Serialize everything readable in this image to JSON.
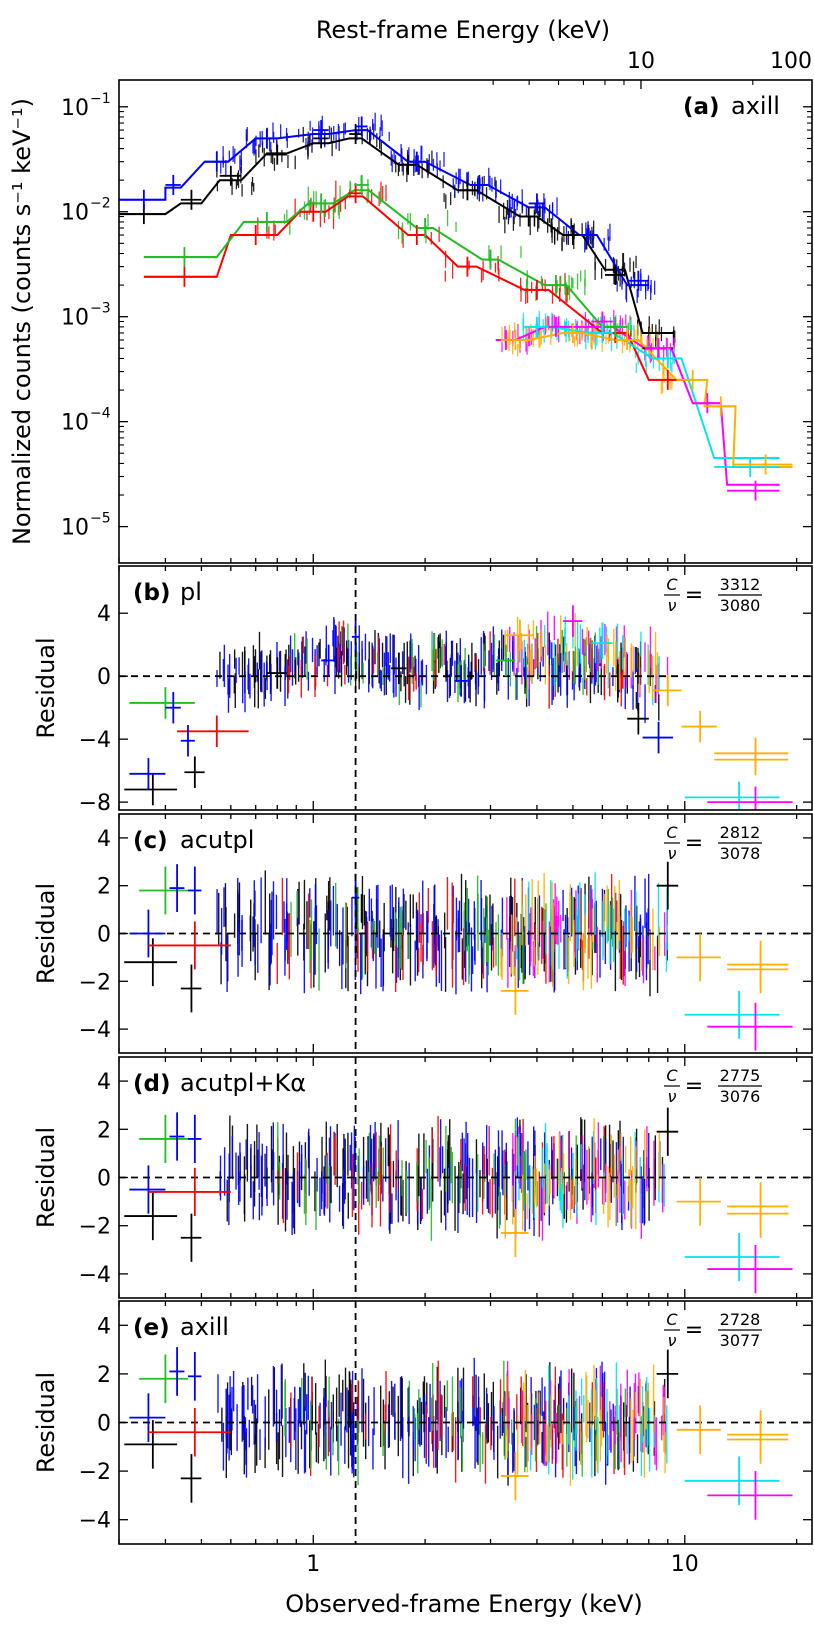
{
  "chart_data": {
    "type": "scatter",
    "description_units": "keV",
    "top_axis_label": "Rest-frame Energy (keV)",
    "top_axis_ticks": [
      "10",
      "100"
    ],
    "bottom_axis_label": "Observed-frame Energy (keV)",
    "bottom_axis_ticks": [
      "1",
      "10"
    ],
    "x_range": [
      0.3,
      22
    ],
    "series_colors": [
      "#000000",
      "#0000ff",
      "#ff0000",
      "#22bb22",
      "#ff00ff",
      "#00e5ee",
      "#ffb000"
    ],
    "reference_line_energy": 1.3,
    "panels": [
      {
        "id": "a",
        "tag": "(a)",
        "model": "axill",
        "ylabel": "Normalized counts (counts s⁻¹ keV⁻¹)",
        "yscale": "log",
        "ylim": [
          4.5e-06,
          0.18
        ],
        "yticks": [
          {
            "value": 0.1,
            "base": "10",
            "exp": "−1"
          },
          {
            "value": 0.01,
            "base": "10",
            "exp": "−2"
          },
          {
            "value": 0.001,
            "base": "10",
            "exp": "−3"
          },
          {
            "value": 0.0001,
            "base": "10",
            "exp": "−4"
          },
          {
            "value": 1e-05,
            "base": "10",
            "exp": "−5"
          }
        ]
      },
      {
        "id": "b",
        "tag": "(b)",
        "model": "pl",
        "ylabel": "Residual",
        "ylim": [
          -8.5,
          7
        ],
        "yticks": [
          4,
          0,
          -4,
          -8
        ],
        "stat_num": "3312",
        "stat_den": "3080"
      },
      {
        "id": "c",
        "tag": "(c)",
        "model": "acutpl",
        "ylabel": "Residual",
        "ylim": [
          -5,
          5
        ],
        "yticks": [
          4,
          2,
          0,
          -2,
          -4
        ],
        "stat_num": "2812",
        "stat_den": "3078"
      },
      {
        "id": "d",
        "tag": "(d)",
        "model": "acutpl+Kα",
        "ylabel": "Residual",
        "ylim": [
          -5,
          5
        ],
        "yticks": [
          4,
          2,
          0,
          -2,
          -4
        ],
        "stat_num": "2775",
        "stat_den": "3076"
      },
      {
        "id": "e",
        "tag": "(e)",
        "model": "axill",
        "ylabel": "Residual",
        "ylim": [
          -5,
          5
        ],
        "yticks": [
          4,
          2,
          0,
          -2,
          -4
        ],
        "stat_num": "2728",
        "stat_den": "3077"
      }
    ],
    "stat_symbol_c": "C",
    "stat_symbol_nu": "ν",
    "tag_color": "#d01c3c",
    "spectra_points": [
      {
        "series": 0,
        "e": 0.35,
        "ew": 0.05,
        "v": 0.0095,
        "model": 0.0095
      },
      {
        "series": 0,
        "e": 0.47,
        "ew": 0.03,
        "v": 0.013,
        "model": 0.012
      },
      {
        "series": 0,
        "e": 0.6,
        "ew": 0.04,
        "v": 0.022,
        "model": 0.02
      },
      {
        "series": 0,
        "e": 0.8,
        "ew": 0.05,
        "v": 0.035,
        "model": 0.036
      },
      {
        "series": 0,
        "e": 1.05,
        "ew": 0.05,
        "v": 0.05,
        "model": 0.045
      },
      {
        "series": 0,
        "e": 1.3,
        "ew": 0.05,
        "v": 0.055,
        "model": 0.05
      },
      {
        "series": 0,
        "e": 1.8,
        "ew": 0.1,
        "v": 0.028,
        "model": 0.028
      },
      {
        "series": 0,
        "e": 2.6,
        "ew": 0.15,
        "v": 0.016,
        "model": 0.016
      },
      {
        "series": 0,
        "e": 3.8,
        "ew": 0.2,
        "v": 0.009,
        "model": 0.009
      },
      {
        "series": 0,
        "e": 5.0,
        "ew": 0.3,
        "v": 0.006,
        "model": 0.006
      },
      {
        "series": 0,
        "e": 6.5,
        "ew": 0.4,
        "v": 0.0025,
        "model": 0.0028
      },
      {
        "series": 0,
        "e": 8.5,
        "ew": 0.8,
        "v": 0.0005,
        "model": 0.0007
      },
      {
        "series": 1,
        "e": 0.35,
        "ew": 0.05,
        "v": 0.013,
        "model": 0.013
      },
      {
        "series": 1,
        "e": 0.42,
        "ew": 0.02,
        "v": 0.018,
        "model": 0.017
      },
      {
        "series": 1,
        "e": 0.55,
        "ew": 0.04,
        "v": 0.03,
        "model": 0.03
      },
      {
        "series": 1,
        "e": 0.75,
        "ew": 0.05,
        "v": 0.05,
        "model": 0.05
      },
      {
        "series": 1,
        "e": 1.05,
        "ew": 0.05,
        "v": 0.06,
        "model": 0.055
      },
      {
        "series": 1,
        "e": 1.35,
        "ew": 0.05,
        "v": 0.065,
        "model": 0.06
      },
      {
        "series": 1,
        "e": 1.9,
        "ew": 0.1,
        "v": 0.03,
        "model": 0.03
      },
      {
        "series": 1,
        "e": 2.8,
        "ew": 0.15,
        "v": 0.018,
        "model": 0.018
      },
      {
        "series": 1,
        "e": 4.0,
        "ew": 0.2,
        "v": 0.012,
        "model": 0.011
      },
      {
        "series": 1,
        "e": 5.5,
        "ew": 0.3,
        "v": 0.006,
        "model": 0.006
      },
      {
        "series": 1,
        "e": 7.5,
        "ew": 0.5,
        "v": 0.0022,
        "model": 0.002
      },
      {
        "series": 2,
        "e": 0.45,
        "ew": 0.1,
        "v": 0.0024,
        "model": 0.0024
      },
      {
        "series": 2,
        "e": 0.7,
        "ew": 0.1,
        "v": 0.006,
        "model": 0.006
      },
      {
        "series": 2,
        "e": 1.0,
        "ew": 0.08,
        "v": 0.01,
        "model": 0.01
      },
      {
        "series": 2,
        "e": 1.3,
        "ew": 0.06,
        "v": 0.015,
        "model": 0.014
      },
      {
        "series": 2,
        "e": 1.9,
        "ew": 0.1,
        "v": 0.006,
        "model": 0.006
      },
      {
        "series": 2,
        "e": 2.6,
        "ew": 0.15,
        "v": 0.003,
        "model": 0.003
      },
      {
        "series": 2,
        "e": 4.0,
        "ew": 0.3,
        "v": 0.0018,
        "model": 0.0018
      },
      {
        "series": 2,
        "e": 6.5,
        "ew": 0.5,
        "v": 0.0007,
        "model": 0.0007
      },
      {
        "series": 2,
        "e": 9.0,
        "ew": 1.0,
        "v": 0.00025,
        "model": 0.00025
      },
      {
        "series": 3,
        "e": 0.45,
        "ew": 0.1,
        "v": 0.0037,
        "model": 0.0037
      },
      {
        "series": 3,
        "e": 0.75,
        "ew": 0.1,
        "v": 0.008,
        "model": 0.008
      },
      {
        "series": 3,
        "e": 1.05,
        "ew": 0.08,
        "v": 0.012,
        "model": 0.012
      },
      {
        "series": 3,
        "e": 1.35,
        "ew": 0.06,
        "v": 0.018,
        "model": 0.016
      },
      {
        "series": 3,
        "e": 2.0,
        "ew": 0.1,
        "v": 0.007,
        "model": 0.007
      },
      {
        "series": 3,
        "e": 3.0,
        "ew": 0.15,
        "v": 0.0035,
        "model": 0.0035
      },
      {
        "series": 3,
        "e": 4.5,
        "ew": 0.3,
        "v": 0.002,
        "model": 0.002
      },
      {
        "series": 3,
        "e": 6.5,
        "ew": 0.5,
        "v": 0.0008,
        "model": 0.0008
      },
      {
        "series": 4,
        "e": 3.3,
        "ew": 0.2,
        "v": 0.0006,
        "model": 0.0006
      },
      {
        "series": 4,
        "e": 4.5,
        "ew": 0.3,
        "v": 0.0008,
        "model": 0.0008
      },
      {
        "series": 4,
        "e": 6.0,
        "ew": 0.4,
        "v": 0.0009,
        "model": 0.0008
      },
      {
        "series": 4,
        "e": 8.5,
        "ew": 0.7,
        "v": 0.0005,
        "model": 0.0005
      },
      {
        "series": 4,
        "e": 11.5,
        "ew": 1.0,
        "v": 0.00015,
        "model": 0.00015
      },
      {
        "series": 4,
        "e": 15.5,
        "ew": 2.5,
        "v": 2.2e-05,
        "model": 2.5e-05
      },
      {
        "series": 5,
        "e": 4.0,
        "ew": 0.3,
        "v": 0.0008,
        "model": 0.0008
      },
      {
        "series": 5,
        "e": 6.0,
        "ew": 0.4,
        "v": 0.0007,
        "model": 0.0007
      },
      {
        "series": 5,
        "e": 9.0,
        "ew": 0.8,
        "v": 0.0004,
        "model": 0.0004
      },
      {
        "series": 5,
        "e": 15.0,
        "ew": 3.0,
        "v": 3.7e-05,
        "model": 4.5e-05
      },
      {
        "series": 6,
        "e": 3.5,
        "ew": 0.3,
        "v": 0.0006,
        "model": 0.0006
      },
      {
        "series": 6,
        "e": 5.0,
        "ew": 0.3,
        "v": 0.0007,
        "model": 0.0007
      },
      {
        "series": 6,
        "e": 7.0,
        "ew": 0.5,
        "v": 0.0006,
        "model": 0.0006
      },
      {
        "series": 6,
        "e": 10.5,
        "ew": 1.0,
        "v": 0.00025,
        "model": 0.00025
      },
      {
        "series": 6,
        "e": 12.5,
        "ew": 1.2,
        "v": 0.00014,
        "model": 0.00014
      },
      {
        "series": 6,
        "e": 16.5,
        "ew": 3.0,
        "v": 3.9e-05,
        "model": 3.7e-05
      }
    ],
    "residual_points": {
      "b": [
        {
          "series": 0,
          "e": 0.37,
          "ew": 0.06,
          "v": -7.2
        },
        {
          "series": 1,
          "e": 0.36,
          "ew": 0.04,
          "v": -6.2
        },
        {
          "series": 0,
          "e": 0.48,
          "ew": 0.03,
          "v": -6.1
        },
        {
          "series": 2,
          "e": 0.55,
          "ew": 0.12,
          "v": -3.5
        },
        {
          "series": 3,
          "e": 0.4,
          "ew": 0.08,
          "v": -1.7
        },
        {
          "series": 1,
          "e": 0.46,
          "ew": 0.02,
          "v": -4.1
        },
        {
          "series": 1,
          "e": 0.42,
          "ew": 0.02,
          "v": -2.0
        },
        {
          "series": 0,
          "e": 0.8,
          "ew": 0.05,
          "v": 0.2
        },
        {
          "series": 1,
          "e": 1.1,
          "ew": 0.05,
          "v": 1.0
        },
        {
          "series": 1,
          "e": 1.3,
          "ew": 0.03,
          "v": 2.5
        },
        {
          "series": 0,
          "e": 1.7,
          "ew": 0.08,
          "v": 0.5
        },
        {
          "series": 1,
          "e": 2.5,
          "ew": 0.1,
          "v": -0.3
        },
        {
          "series": 3,
          "e": 3.3,
          "ew": 0.2,
          "v": 1.0
        },
        {
          "series": 6,
          "e": 3.6,
          "ew": 0.3,
          "v": 2.6
        },
        {
          "series": 4,
          "e": 5.0,
          "ew": 0.3,
          "v": 3.5
        },
        {
          "series": 5,
          "e": 6.0,
          "ew": 0.4,
          "v": 2.1
        },
        {
          "series": 0,
          "e": 7.5,
          "ew": 0.5,
          "v": -2.7
        },
        {
          "series": 1,
          "e": 8.5,
          "ew": 0.8,
          "v": -3.9
        },
        {
          "series": 6,
          "e": 9.0,
          "ew": 0.8,
          "v": -0.9
        },
        {
          "series": 6,
          "e": 11.0,
          "ew": 1.2,
          "v": -3.2
        },
        {
          "series": 6,
          "e": 15.5,
          "ew": 3.5,
          "v": -4.9
        },
        {
          "series": 6,
          "e": 15.5,
          "ew": 3.5,
          "v": -5.3
        },
        {
          "series": 5,
          "e": 14.0,
          "ew": 4.0,
          "v": -7.7
        },
        {
          "series": 4,
          "e": 15.5,
          "ew": 4.0,
          "v": -8.0
        }
      ],
      "c": [
        {
          "series": 0,
          "e": 0.37,
          "ew": 0.06,
          "v": -1.2
        },
        {
          "series": 1,
          "e": 0.36,
          "ew": 0.04,
          "v": 0.0
        },
        {
          "series": 2,
          "e": 0.48,
          "ew": 0.12,
          "v": -0.5
        },
        {
          "series": 0,
          "e": 0.47,
          "ew": 0.03,
          "v": -2.3
        },
        {
          "series": 3,
          "e": 0.4,
          "ew": 0.06,
          "v": 1.8
        },
        {
          "series": 1,
          "e": 0.43,
          "ew": 0.02,
          "v": 1.9
        },
        {
          "series": 1,
          "e": 0.48,
          "ew": 0.02,
          "v": 1.8
        },
        {
          "series": 1,
          "e": 1.3,
          "ew": 0.03,
          "v": 1.5
        },
        {
          "series": 6,
          "e": 3.5,
          "ew": 0.3,
          "v": -2.4
        },
        {
          "series": 0,
          "e": 9.0,
          "ew": 0.6,
          "v": 2.0
        },
        {
          "series": 6,
          "e": 11.0,
          "ew": 1.5,
          "v": -1.0
        },
        {
          "series": 6,
          "e": 16.0,
          "ew": 3.0,
          "v": -1.3
        },
        {
          "series": 6,
          "e": 16.0,
          "ew": 3.0,
          "v": -1.5
        },
        {
          "series": 5,
          "e": 14.0,
          "ew": 4.0,
          "v": -3.4
        },
        {
          "series": 4,
          "e": 15.5,
          "ew": 4.0,
          "v": -3.9
        }
      ],
      "d": [
        {
          "series": 0,
          "e": 0.37,
          "ew": 0.06,
          "v": -1.6
        },
        {
          "series": 1,
          "e": 0.36,
          "ew": 0.04,
          "v": -0.5
        },
        {
          "series": 2,
          "e": 0.48,
          "ew": 0.12,
          "v": -0.6
        },
        {
          "series": 0,
          "e": 0.47,
          "ew": 0.03,
          "v": -2.5
        },
        {
          "series": 3,
          "e": 0.4,
          "ew": 0.06,
          "v": 1.6
        },
        {
          "series": 1,
          "e": 0.43,
          "ew": 0.02,
          "v": 1.7
        },
        {
          "series": 1,
          "e": 0.48,
          "ew": 0.02,
          "v": 1.6
        },
        {
          "series": 6,
          "e": 3.5,
          "ew": 0.3,
          "v": -2.3
        },
        {
          "series": 0,
          "e": 9.0,
          "ew": 0.6,
          "v": 1.9
        },
        {
          "series": 6,
          "e": 11.0,
          "ew": 1.5,
          "v": -1.0
        },
        {
          "series": 6,
          "e": 16.0,
          "ew": 3.0,
          "v": -1.2
        },
        {
          "series": 6,
          "e": 16.0,
          "ew": 3.0,
          "v": -1.5
        },
        {
          "series": 5,
          "e": 14.0,
          "ew": 4.0,
          "v": -3.3
        },
        {
          "series": 4,
          "e": 15.5,
          "ew": 4.0,
          "v": -3.8
        }
      ],
      "e": [
        {
          "series": 0,
          "e": 0.37,
          "ew": 0.06,
          "v": -0.9
        },
        {
          "series": 1,
          "e": 0.36,
          "ew": 0.04,
          "v": 0.2
        },
        {
          "series": 2,
          "e": 0.48,
          "ew": 0.12,
          "v": -0.4
        },
        {
          "series": 0,
          "e": 0.47,
          "ew": 0.03,
          "v": -2.3
        },
        {
          "series": 3,
          "e": 0.4,
          "ew": 0.06,
          "v": 1.8
        },
        {
          "series": 1,
          "e": 0.43,
          "ew": 0.02,
          "v": 2.1
        },
        {
          "series": 1,
          "e": 0.48,
          "ew": 0.02,
          "v": 1.9
        },
        {
          "series": 6,
          "e": 3.5,
          "ew": 0.3,
          "v": -2.2
        },
        {
          "series": 0,
          "e": 9.0,
          "ew": 0.6,
          "v": 2.0
        },
        {
          "series": 6,
          "e": 11.0,
          "ew": 1.5,
          "v": -0.3
        },
        {
          "series": 6,
          "e": 16.0,
          "ew": 3.0,
          "v": -0.5
        },
        {
          "series": 6,
          "e": 16.0,
          "ew": 3.0,
          "v": -0.7
        },
        {
          "series": 5,
          "e": 14.0,
          "ew": 4.0,
          "v": -2.4
        },
        {
          "series": 4,
          "e": 15.5,
          "ew": 4.0,
          "v": -3.0
        }
      ]
    }
  }
}
